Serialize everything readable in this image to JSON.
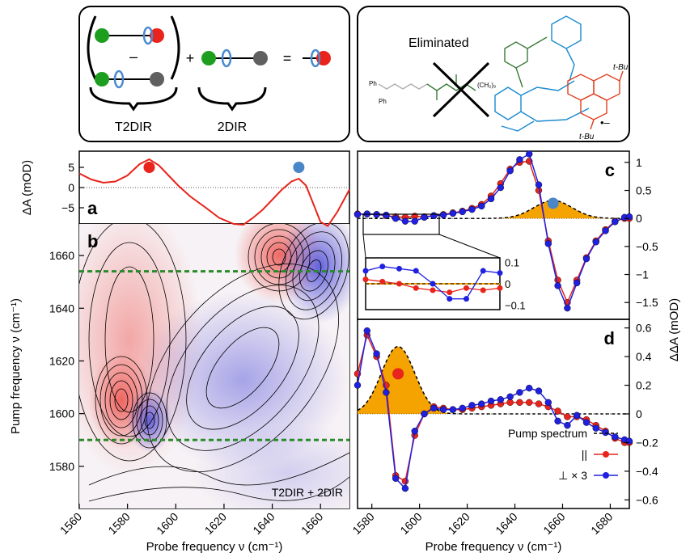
{
  "figure": {
    "scheme_left": {
      "minus": "–",
      "plus": "+",
      "equals": "=",
      "label_t2dir": "T2DIR",
      "label_2dir": "2DIR"
    },
    "scheme_right": {
      "eliminated": "Eliminated",
      "tbu": "t-Bu",
      "ph": "Ph",
      "chain": "(CH₂)₉",
      "radical": "•–"
    },
    "colors": {
      "red": "#e8241c",
      "blue": "#2020e0",
      "orange": "#f5a300",
      "green_dot": "#1e9e1e",
      "gray_dot": "#606060",
      "ring_blue": "#4a8ad0",
      "dashed_green": "#2a8a2a",
      "marker_blue": "#4a86c8",
      "molecule_blue": "#1a8ad0",
      "molecule_red": "#e04020",
      "molecule_green": "#3a7a3a"
    }
  },
  "chart_data": [
    {
      "id": "a",
      "type": "line",
      "panel_label": "a",
      "ylabel": "ΔA (mOD)",
      "xlim": [
        1560,
        1672
      ],
      "ylim": [
        -9,
        9
      ],
      "yticks": [
        5,
        0,
        -5
      ],
      "ytick_labels": [
        "5",
        "0",
        "−5"
      ],
      "x": [
        1560,
        1565,
        1570,
        1575,
        1580,
        1585,
        1589,
        1593,
        1597,
        1601,
        1606,
        1612,
        1618,
        1624,
        1628,
        1632,
        1636,
        1640,
        1644,
        1648,
        1651,
        1654,
        1657,
        1660,
        1663,
        1667,
        1672
      ],
      "y": [
        3.5,
        2,
        1.2,
        1.5,
        3,
        5.8,
        7,
        5.5,
        3,
        0.5,
        -2.2,
        -4.8,
        -7.5,
        -9,
        -9.2,
        -7.5,
        -5.5,
        -3,
        -0.5,
        1.5,
        2.2,
        0.5,
        -4,
        -8.5,
        -9.5,
        -6,
        -0.5
      ],
      "markers": [
        {
          "x": 1589,
          "y": 5,
          "color": "#e8241c"
        },
        {
          "x": 1651,
          "y": 5,
          "color": "#4a86c8"
        }
      ]
    },
    {
      "id": "b",
      "type": "heatmap",
      "panel_label": "b",
      "xlabel": "Probe frequency ν (cm⁻¹)",
      "ylabel": "Pump frequency ν (cm⁻¹)",
      "xlim": [
        1560,
        1672
      ],
      "ylim": [
        1564,
        1672
      ],
      "xticks": [
        1560,
        1580,
        1600,
        1620,
        1640,
        1660
      ],
      "yticks": [
        1580,
        1600,
        1620,
        1640,
        1660
      ],
      "dashed_lines_pump": [
        1654,
        1590
      ],
      "legend": "T2DIR + 2DIR",
      "features": [
        {
          "probe": 1580,
          "pump": 1593,
          "sign": "positive"
        },
        {
          "probe": 1592,
          "pump": 1589,
          "sign": "negative"
        },
        {
          "probe": 1641,
          "pump": 1655,
          "sign": "positive"
        },
        {
          "probe": 1655,
          "pump": 1651,
          "sign": "negative"
        },
        {
          "probe": 1583,
          "pump": 1622,
          "sign": "positive"
        },
        {
          "probe": 1622,
          "pump": 1612,
          "sign": "negative"
        }
      ]
    },
    {
      "id": "c",
      "type": "line",
      "panel_label": "c",
      "ylabel": "ΔΔA (mOD)",
      "xlim": [
        1574,
        1688
      ],
      "ylim": [
        -1.8,
        1.2
      ],
      "yticks": [
        1,
        0.5,
        0,
        -0.5,
        -1,
        -1.5
      ],
      "ytick_labels": [
        "1",
        "0.5",
        "0",
        "−0.5",
        "−1",
        "−1.5"
      ],
      "x": [
        1574,
        1578,
        1582,
        1586,
        1590,
        1594,
        1598,
        1602,
        1606,
        1610,
        1614,
        1618,
        1622,
        1626,
        1630,
        1634,
        1638,
        1642,
        1646,
        1650,
        1654,
        1658,
        1662,
        1666,
        1670,
        1674,
        1678,
        1682,
        1686,
        1688
      ],
      "series": [
        {
          "name": "||",
          "color": "#e8241c",
          "values": [
            0.08,
            0.08,
            0.07,
            0.05,
            0.03,
            0.02,
            0.04,
            0.03,
            0.05,
            0.07,
            0.1,
            0.13,
            0.18,
            0.25,
            0.4,
            0.62,
            0.88,
            1.0,
            1.02,
            0.5,
            -0.4,
            -1.1,
            -1.5,
            -1.1,
            -0.7,
            -0.4,
            -0.2,
            -0.05,
            0.0,
            0.0
          ]
        },
        {
          "name": "⊥×3",
          "color": "#2020e0",
          "values": [
            0.07,
            0.08,
            0.07,
            0.06,
            0.0,
            -0.05,
            -0.05,
            0.02,
            0.05,
            0.06,
            0.09,
            0.12,
            0.16,
            0.22,
            0.35,
            0.55,
            0.85,
            1.05,
            1.15,
            0.6,
            -0.45,
            -1.2,
            -1.6,
            -1.15,
            -0.72,
            -0.42,
            -0.22,
            -0.06,
            0.02,
            0.03
          ]
        }
      ],
      "pump": {
        "center": 1656,
        "width": 8,
        "amplitude": 0.32
      },
      "marker": {
        "x": 1656,
        "y": 0.27,
        "color": "#4a86c8"
      },
      "inset": {
        "yticks": [
          0.1,
          0,
          -0.1
        ],
        "ytick_labels": [
          "0.1",
          "0",
          "−0.1"
        ]
      }
    },
    {
      "id": "d",
      "type": "line",
      "panel_label": "d",
      "xlabel": "Probe frequency ν (cm⁻¹)",
      "ylabel": "ΔΔA (mOD)",
      "xlim": [
        1574,
        1688
      ],
      "ylim": [
        -0.66,
        0.66
      ],
      "xticks": [
        1580,
        1600,
        1620,
        1640,
        1660,
        1680
      ],
      "yticks": [
        0.6,
        0.4,
        0.2,
        0,
        -0.2,
        -0.4,
        -0.6
      ],
      "ytick_labels": [
        "0.6",
        "0.4",
        "0.2",
        "0",
        "−0.2",
        "−0.4",
        "−0.6"
      ],
      "x": [
        1574,
        1578,
        1582,
        1586,
        1590,
        1594,
        1598,
        1602,
        1606,
        1610,
        1614,
        1618,
        1622,
        1626,
        1630,
        1634,
        1638,
        1642,
        1646,
        1650,
        1654,
        1658,
        1662,
        1666,
        1670,
        1674,
        1678,
        1682,
        1686,
        1688
      ],
      "series": [
        {
          "name": "||",
          "color": "#e8241c",
          "values": [
            0.28,
            0.55,
            0.4,
            0.2,
            -0.43,
            -0.47,
            -0.15,
            0.0,
            0.05,
            0.04,
            0.03,
            0.03,
            0.04,
            0.05,
            0.06,
            0.07,
            0.08,
            0.08,
            0.08,
            0.07,
            0.05,
            0.02,
            -0.02,
            -0.02,
            -0.04,
            -0.08,
            -0.12,
            -0.17,
            -0.2,
            -0.2
          ]
        },
        {
          "name": "⊥×3",
          "color": "#2020e0",
          "values": [
            0.2,
            0.58,
            0.42,
            0.15,
            -0.45,
            -0.52,
            -0.12,
            0.0,
            0.04,
            0.03,
            0.03,
            0.04,
            0.06,
            0.07,
            0.09,
            0.1,
            0.12,
            0.15,
            0.18,
            0.16,
            0.08,
            -0.05,
            -0.08,
            -0.01,
            -0.06,
            -0.1,
            -0.13,
            -0.16,
            -0.18,
            -0.19
          ]
        }
      ],
      "pump": {
        "center": 1591,
        "width": 7,
        "amplitude": 0.47
      },
      "marker": {
        "x": 1591,
        "y": 0.28,
        "color": "#e8241c"
      },
      "legend": [
        {
          "label": "Pump spectrum",
          "style": "dashed"
        },
        {
          "label": "||",
          "color": "#e8241c"
        },
        {
          "label": "⊥ × 3",
          "color": "#2020e0"
        }
      ]
    }
  ]
}
